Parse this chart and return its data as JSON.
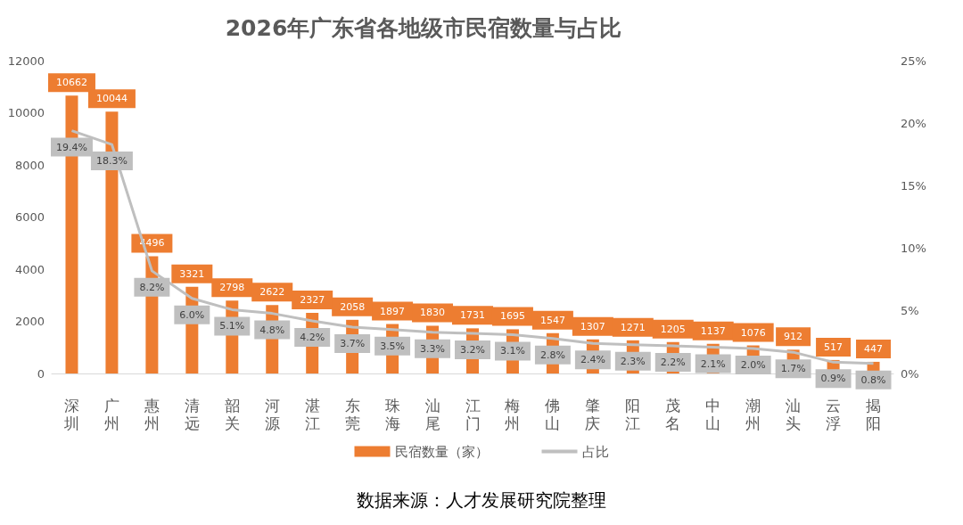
{
  "chart_data": {
    "type": "bar",
    "title": "2026年广东省各地级市民宿数量与占比",
    "categories": [
      "深圳",
      "广州",
      "惠州",
      "清远",
      "韶关",
      "河源",
      "湛江",
      "东莞",
      "珠海",
      "汕尾",
      "江门",
      "梅州",
      "佛山",
      "肇庆",
      "阳江",
      "茂名",
      "中山",
      "潮州",
      "汕头",
      "云浮",
      "揭阳"
    ],
    "series": [
      {
        "name": "民宿数量（家）",
        "color": "#ed7d31",
        "values": [
          10662,
          10044,
          4496,
          3321,
          2798,
          2622,
          2327,
          2058,
          1897,
          1830,
          1731,
          1695,
          1547,
          1307,
          1271,
          1205,
          1137,
          1076,
          912,
          517,
          447
        ],
        "value_labels": [
          "10662",
          "10044",
          "4496",
          "3321",
          "2798",
          "2622",
          "2327",
          "2058",
          "1897",
          "1830",
          "1731",
          "1695",
          "1547",
          "1307",
          "1271",
          "1205",
          "1137",
          "1076",
          "912",
          "517",
          "447"
        ]
      },
      {
        "name": "占比",
        "type": "line",
        "axis": "y2",
        "color": "#bfbfbf",
        "values": [
          19.4,
          18.3,
          8.2,
          6.0,
          5.1,
          4.8,
          4.2,
          3.7,
          3.5,
          3.3,
          3.2,
          3.1,
          2.8,
          2.4,
          2.3,
          2.2,
          2.1,
          2.0,
          1.7,
          0.9,
          0.8
        ],
        "value_labels": [
          "19.4%",
          "18.3%",
          "8.2%",
          "6.0%",
          "5.1%",
          "4.8%",
          "4.2%",
          "3.7%",
          "3.5%",
          "3.3%",
          "3.2%",
          "3.1%",
          "2.8%",
          "2.4%",
          "2.3%",
          "2.2%",
          "2.1%",
          "2.0%",
          "1.7%",
          "0.9%",
          "0.8%"
        ]
      }
    ],
    "ylim": [
      0,
      12000
    ],
    "yticks": [
      0,
      2000,
      4000,
      6000,
      8000,
      10000,
      12000
    ],
    "y2lim": [
      0,
      25
    ],
    "y2ticks": [
      {
        "value": 0,
        "label": "0%"
      },
      {
        "value": 5,
        "label": "5%"
      },
      {
        "value": 10,
        "label": "10%"
      },
      {
        "value": 15,
        "label": "15%"
      },
      {
        "value": 20,
        "label": "20%"
      },
      {
        "value": 25,
        "label": "25%"
      }
    ],
    "legend": "bottom",
    "marker": "none",
    "annotations": [
      "数据来源：人才发展研究院整理"
    ]
  }
}
